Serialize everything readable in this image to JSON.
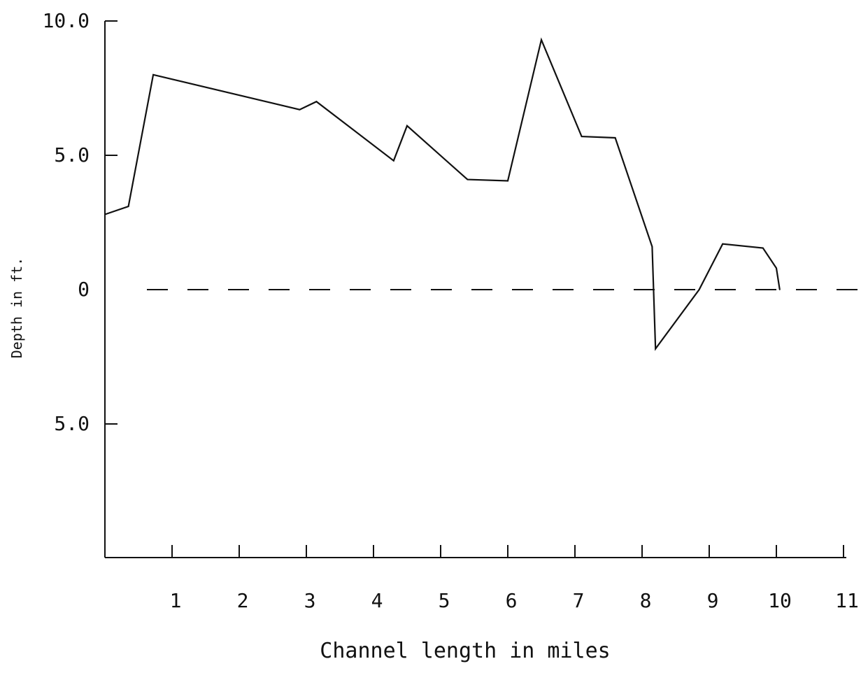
{
  "chart_data": {
    "type": "line",
    "title": "",
    "xlabel": "Channel length in miles",
    "ylabel": "Depth in ft.",
    "xlim": [
      0,
      11
    ],
    "ylim": [
      -10,
      10
    ],
    "x_ticks": [
      {
        "value": 1,
        "label": "1"
      },
      {
        "value": 2,
        "label": "2"
      },
      {
        "value": 3,
        "label": "3"
      },
      {
        "value": 4,
        "label": "4"
      },
      {
        "value": 5,
        "label": "5"
      },
      {
        "value": 6,
        "label": "6"
      },
      {
        "value": 7,
        "label": "7"
      },
      {
        "value": 8,
        "label": "8"
      },
      {
        "value": 9,
        "label": "9"
      },
      {
        "value": 10,
        "label": "10"
      },
      {
        "value": 11,
        "label": "11"
      }
    ],
    "y_ticks": [
      {
        "value": 10,
        "label": "10.0"
      },
      {
        "value": 5,
        "label": "5.0"
      },
      {
        "value": 0,
        "label": "0"
      },
      {
        "value": -5,
        "label": "5.0"
      }
    ],
    "reference_line": {
      "y": 0,
      "style": "dashed"
    },
    "grid": false,
    "series": [
      {
        "values": [
          {
            "x": 0.0,
            "y": 2.8
          },
          {
            "x": 0.35,
            "y": 3.1
          },
          {
            "x": 0.72,
            "y": 8.0
          },
          {
            "x": 2.9,
            "y": 6.7
          },
          {
            "x": 3.15,
            "y": 7.0
          },
          {
            "x": 4.3,
            "y": 4.8
          },
          {
            "x": 4.5,
            "y": 6.1
          },
          {
            "x": 5.4,
            "y": 4.1
          },
          {
            "x": 6.0,
            "y": 4.05
          },
          {
            "x": 6.5,
            "y": 9.3
          },
          {
            "x": 7.1,
            "y": 5.7
          },
          {
            "x": 7.6,
            "y": 5.65
          },
          {
            "x": 8.15,
            "y": 1.6
          },
          {
            "x": 8.2,
            "y": -2.2
          },
          {
            "x": 8.85,
            "y": 0.0
          },
          {
            "x": 9.2,
            "y": 1.7
          },
          {
            "x": 9.8,
            "y": 1.55
          },
          {
            "x": 10.0,
            "y": 0.8
          },
          {
            "x": 10.05,
            "y": 0.0
          }
        ]
      }
    ]
  }
}
